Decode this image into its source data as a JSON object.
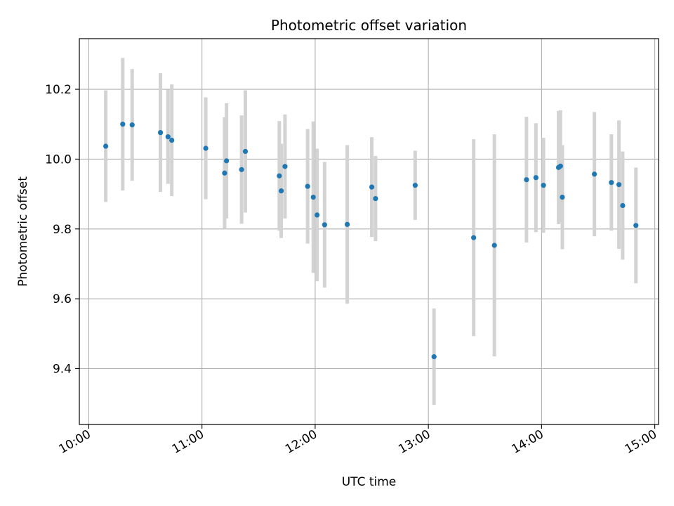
{
  "chart_data": {
    "type": "scatter",
    "title": "Photometric offset variation",
    "xlabel": "UTC time",
    "ylabel": "Photometric offset",
    "grid": true,
    "xlim": [
      "09:55",
      "15:02"
    ],
    "ylim": [
      9.24,
      10.345
    ],
    "xticks": [
      "10:00",
      "11:00",
      "12:00",
      "13:00",
      "14:00",
      "15:00"
    ],
    "yticks": [
      "9.4",
      "9.6",
      "9.8",
      "10.0",
      "10.2"
    ],
    "colors": {
      "point": "#1f77b4",
      "errorbar": "#d3d3d3",
      "grid": "#b0b0b0"
    },
    "points": [
      {
        "t": "10:09",
        "y": 10.037,
        "err": 0.16
      },
      {
        "t": "10:18",
        "y": 10.1,
        "err": 0.19
      },
      {
        "t": "10:23",
        "y": 10.098,
        "err": 0.16
      },
      {
        "t": "10:38",
        "y": 10.076,
        "err": 0.17
      },
      {
        "t": "10:42",
        "y": 10.064,
        "err": 0.135
      },
      {
        "t": "10:44",
        "y": 10.054,
        "err": 0.16
      },
      {
        "t": "11:02",
        "y": 10.031,
        "err": 0.146
      },
      {
        "t": "11:12",
        "y": 9.96,
        "err": 0.16
      },
      {
        "t": "11:13",
        "y": 9.995,
        "err": 0.165
      },
      {
        "t": "11:21",
        "y": 9.97,
        "err": 0.155
      },
      {
        "t": "11:23",
        "y": 10.022,
        "err": 0.175
      },
      {
        "t": "11:41",
        "y": 9.952,
        "err": 0.157
      },
      {
        "t": "11:42",
        "y": 9.909,
        "err": 0.135
      },
      {
        "t": "11:44",
        "y": 9.979,
        "err": 0.149
      },
      {
        "t": "11:56",
        "y": 9.922,
        "err": 0.164
      },
      {
        "t": "11:59",
        "y": 9.891,
        "err": 0.217
      },
      {
        "t": "12:01",
        "y": 9.84,
        "err": 0.19
      },
      {
        "t": "12:05",
        "y": 9.812,
        "err": 0.18
      },
      {
        "t": "12:17",
        "y": 9.813,
        "err": 0.227
      },
      {
        "t": "12:30",
        "y": 9.92,
        "err": 0.143
      },
      {
        "t": "12:32",
        "y": 9.887,
        "err": 0.122
      },
      {
        "t": "12:53",
        "y": 9.925,
        "err": 0.099
      },
      {
        "t": "13:03",
        "y": 9.434,
        "err": 0.138
      },
      {
        "t": "13:24",
        "y": 9.775,
        "err": 0.282
      },
      {
        "t": "13:35",
        "y": 9.753,
        "err": 0.318
      },
      {
        "t": "13:52",
        "y": 9.941,
        "err": 0.18
      },
      {
        "t": "13:57",
        "y": 9.947,
        "err": 0.156
      },
      {
        "t": "14:01",
        "y": 9.925,
        "err": 0.136
      },
      {
        "t": "14:09",
        "y": 9.976,
        "err": 0.162
      },
      {
        "t": "14:10",
        "y": 9.98,
        "err": 0.16
      },
      {
        "t": "14:11",
        "y": 9.891,
        "err": 0.149
      },
      {
        "t": "14:28",
        "y": 9.957,
        "err": 0.178
      },
      {
        "t": "14:37",
        "y": 9.933,
        "err": 0.138
      },
      {
        "t": "14:41",
        "y": 9.927,
        "err": 0.184
      },
      {
        "t": "14:43",
        "y": 9.867,
        "err": 0.155
      },
      {
        "t": "14:50",
        "y": 9.81,
        "err": 0.166
      }
    ]
  }
}
